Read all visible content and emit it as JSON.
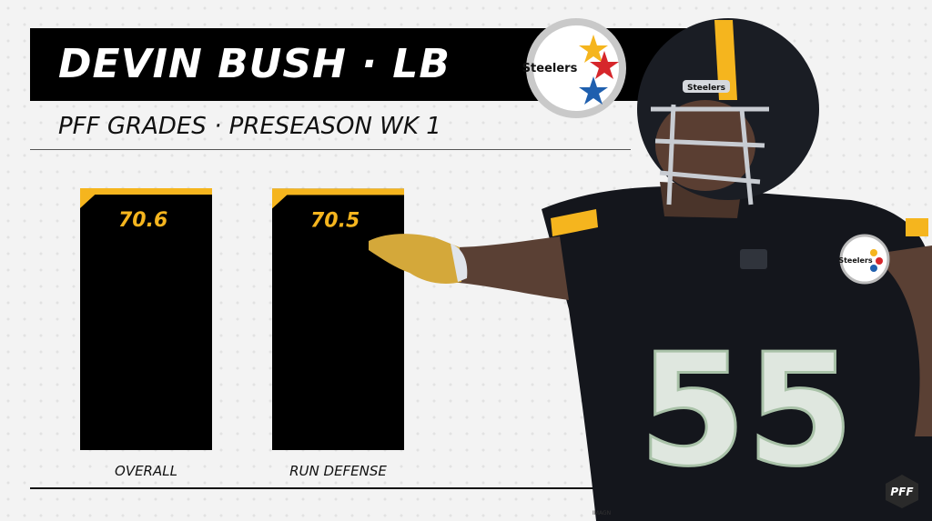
{
  "header": {
    "title": "DEVIN BUSH · LB",
    "subtitle": "PFF GRADES · PRESEASON WK 1",
    "team_logo_text": "Steelers"
  },
  "chart_data": {
    "type": "bar",
    "title": "PFF GRADES · PRESEASON WK 1",
    "categories": [
      "OVERALL",
      "RUN DEFENSE"
    ],
    "values": [
      70.6,
      70.5
    ],
    "value_labels": [
      "70.6",
      "70.5"
    ],
    "ylim": [
      0,
      100
    ],
    "xlabel": "",
    "ylabel": "",
    "grid": false,
    "colors": {
      "bar": "#000000",
      "accent": "#f5b51e",
      "value_text": "#f5b51e"
    }
  },
  "player_photo": {
    "description_icon": "player-photo",
    "jersey_number": "55",
    "helmet_text": "Steelers"
  },
  "footer": {
    "credit": "IMAGN",
    "brand": "PFF"
  }
}
